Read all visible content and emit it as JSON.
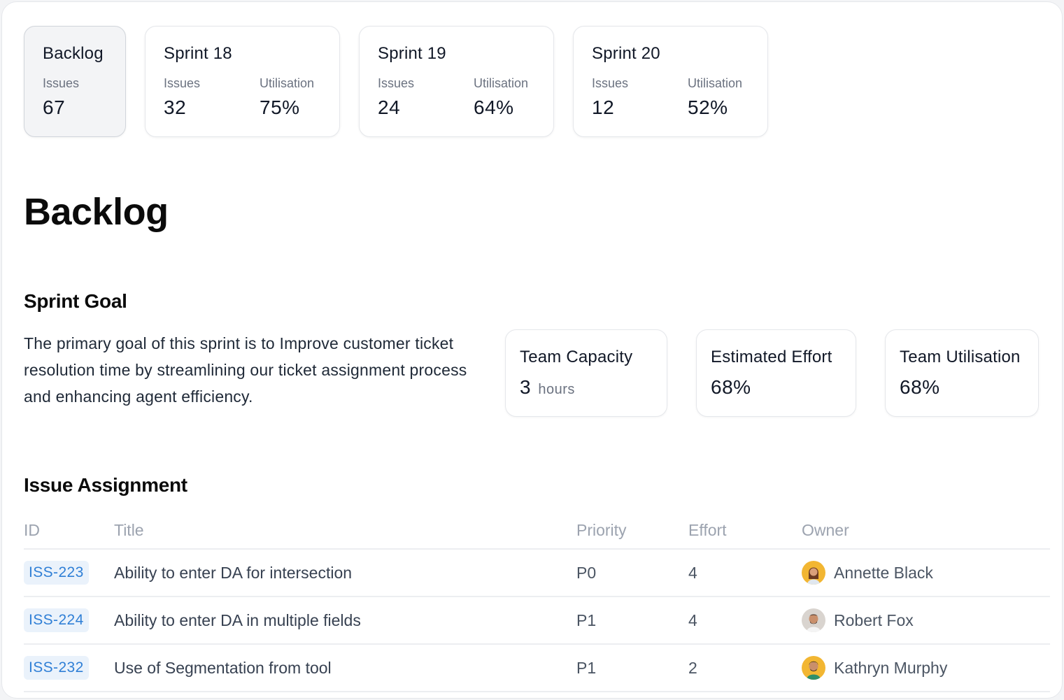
{
  "tabs": [
    {
      "name": "Backlog",
      "issues_label": "Issues",
      "issues": "67"
    },
    {
      "name": "Sprint 18",
      "issues_label": "Issues",
      "issues": "32",
      "util_label": "Utilisation",
      "util": "75%"
    },
    {
      "name": "Sprint 19",
      "issues_label": "Issues",
      "issues": "24",
      "util_label": "Utilisation",
      "util": "64%"
    },
    {
      "name": "Sprint 20",
      "issues_label": "Issues",
      "issues": "12",
      "util_label": "Utilisation",
      "util": "52%"
    }
  ],
  "page": {
    "title": "Backlog"
  },
  "goal": {
    "title": "Sprint Goal",
    "text": "The primary goal of this sprint is to Improve customer ticket resolution time by streamlining our ticket assignment process and enhancing agent efficiency."
  },
  "metrics": {
    "capacity": {
      "label": "Team Capacity",
      "value": "3",
      "unit": "hours"
    },
    "effort": {
      "label": "Estimated Effort",
      "value": "68%"
    },
    "utilisation": {
      "label": "Team Utilisation",
      "value": "68%"
    }
  },
  "issues": {
    "title": "Issue Assignment",
    "columns": {
      "id": "ID",
      "title": "Title",
      "priority": "Priority",
      "effort": "Effort",
      "owner": "Owner"
    },
    "rows": [
      {
        "id": "ISS-223",
        "title": "Ability to enter DA for intersection",
        "priority": "P0",
        "effort": "4",
        "owner": "Annette Black",
        "avatar_color": "#f2b632"
      },
      {
        "id": "ISS-224",
        "title": "Ability to enter DA in multiple fields",
        "priority": "P1",
        "effort": "4",
        "owner": "Robert Fox",
        "avatar_color": "#d9d4cf"
      },
      {
        "id": "ISS-232",
        "title": "Use of Segmentation from tool",
        "priority": "P1",
        "effort": "2",
        "owner": "Kathryn Murphy",
        "avatar_color": "#f2b632"
      }
    ]
  },
  "colors": {
    "accent": "#2f7fd6",
    "badge_bg": "#eaf2fb"
  }
}
